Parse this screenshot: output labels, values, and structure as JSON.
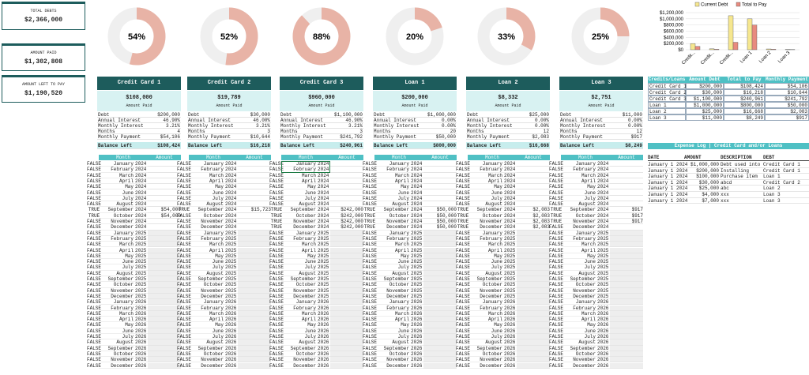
{
  "summary": [
    {
      "label": "TOTAL DEBTS",
      "value": "$2,366,000"
    },
    {
      "label": "AMOUNT PAID",
      "value": "$1,302,808"
    },
    {
      "label": "AMOUNT LEFT TO PAY",
      "value": "$1,190,520"
    }
  ],
  "chart_data": [
    {
      "type": "pie",
      "values": [
        54
      ],
      "value_labels": [
        "54%"
      ],
      "color": "#e8b3a6"
    },
    {
      "type": "pie",
      "values": [
        52
      ],
      "value_labels": [
        "52%"
      ],
      "color": "#e8b3a6"
    },
    {
      "type": "pie",
      "values": [
        88
      ],
      "value_labels": [
        "88%"
      ],
      "color": "#e8b3a6"
    },
    {
      "type": "pie",
      "values": [
        20
      ],
      "value_labels": [
        "20%"
      ],
      "color": "#e8b3a6"
    },
    {
      "type": "pie",
      "values": [
        33
      ],
      "value_labels": [
        "33%"
      ],
      "color": "#e8b3a6"
    },
    {
      "type": "pie",
      "values": [
        25
      ],
      "value_labels": [
        "25%"
      ],
      "color": "#e8b3a6"
    },
    {
      "type": "bar",
      "categories": [
        "Credit...",
        "Credit...",
        "Credit...",
        "Loan 1",
        "Loan 2",
        "Loan 3"
      ],
      "series": [
        {
          "name": "Current Debt",
          "color": "#f6e78f",
          "values": [
            200000,
            30000,
            1100000,
            1000000,
            25000,
            11000
          ]
        },
        {
          "name": "Total to Pay",
          "color": "#e88a7f",
          "values": [
            108424,
            16218,
            240961,
            800000,
            16668,
            8249
          ]
        }
      ],
      "ylim": [
        0,
        1200000
      ],
      "yticks": [
        {
          "value": 0,
          "label": "$0"
        },
        {
          "value": 200000,
          "label": "$200,000"
        },
        {
          "value": 400000,
          "label": "$400,000"
        },
        {
          "value": 600000,
          "label": "$600,000"
        },
        {
          "value": 800000,
          "label": "$800,000"
        },
        {
          "value": 1000000,
          "label": "$1,000,000"
        },
        {
          "value": 1200000,
          "label": "$1,200,000"
        }
      ],
      "legend": "top"
    }
  ],
  "card_labels": [
    "Debt",
    "Annual Interest",
    "Monthly Interest",
    "Months",
    "Monthly Payment",
    "Balance Left"
  ],
  "amount_paid_label": "Amount Paid",
  "cards": [
    {
      "title": "Credit Card 1",
      "amount_paid": "$108,000",
      "values": [
        "$200,000",
        "46.90%",
        "3.21%",
        "4",
        "$54,106",
        "$108,424"
      ]
    },
    {
      "title": "Credit Card 2",
      "amount_paid": "$19,789",
      "values": [
        "$30,000",
        "46.00%",
        "3.21%",
        "3",
        "$10,644",
        "$16,218"
      ]
    },
    {
      "title": "Credit Card 3",
      "amount_paid": "$960,000",
      "values": [
        "$1,100,000",
        "46.90%",
        "3.21%",
        "3",
        "$241,792",
        "$240,961"
      ]
    },
    {
      "title": "Loan 1",
      "amount_paid": "$200,000",
      "values": [
        "$1,000,000",
        "0.00%",
        "0.00%",
        "20",
        "$50,000",
        "$800,000"
      ]
    },
    {
      "title": "Loan 2",
      "amount_paid": "$8,332",
      "values": [
        "$25,000",
        "0.00%",
        "0.00%",
        "12",
        "$2,083",
        "$16,668"
      ]
    },
    {
      "title": "Loan 3",
      "amount_paid": "$2,751",
      "values": [
        "$11,000",
        "0.00%",
        "0.00%",
        "12",
        "$917",
        "$8,249"
      ]
    }
  ],
  "month_table": {
    "headers": [
      "Month",
      "Amount"
    ],
    "months": [
      "January",
      "February",
      "March",
      "April",
      "May",
      "June",
      "July",
      "August",
      "September",
      "October",
      "November",
      "December"
    ],
    "years": [
      "2024",
      "2025",
      "2026"
    ]
  },
  "payments": [
    {
      "status": [
        "FALSE",
        "FALSE",
        "FALSE",
        "FALSE",
        "FALSE",
        "FALSE",
        "FALSE",
        "FALSE",
        "TRUE",
        "TRUE",
        "FALSE",
        "FALSE",
        "FALSE",
        "FALSE",
        "FALSE",
        "FALSE",
        "FALSE",
        "FALSE",
        "FALSE",
        "FALSE",
        "FALSE",
        "FALSE",
        "FALSE",
        "FALSE",
        "FALSE",
        "FALSE",
        "FALSE",
        "FALSE",
        "FALSE",
        "FALSE",
        "FALSE",
        "FALSE",
        "FALSE",
        "FALSE",
        "FALSE",
        "FALSE"
      ],
      "amounts": [
        null,
        null,
        null,
        null,
        null,
        null,
        null,
        null,
        "$54,000",
        "$54,000",
        null,
        null,
        null,
        null,
        null,
        null,
        null,
        null,
        null,
        null,
        null,
        null,
        null,
        null,
        null,
        null,
        null,
        null,
        null,
        null,
        null,
        null,
        null,
        null,
        null,
        null
      ]
    },
    {
      "status": [
        "FALSE",
        "FALSE",
        "FALSE",
        "FALSE",
        "FALSE",
        "FALSE",
        "FALSE",
        "FALSE",
        "TRUE",
        "FALSE",
        "FALSE",
        "FALSE",
        "FALSE",
        "FALSE",
        "FALSE",
        "FALSE",
        "FALSE",
        "FALSE",
        "FALSE",
        "FALSE",
        "FALSE",
        "FALSE",
        "FALSE",
        "FALSE",
        "FALSE",
        "FALSE",
        "FALSE",
        "FALSE",
        "FALSE",
        "FALSE",
        "FALSE",
        "FALSE",
        "FALSE",
        "FALSE",
        "FALSE",
        "FALSE"
      ],
      "amounts": [
        null,
        null,
        null,
        null,
        null,
        null,
        null,
        null,
        "$15,723",
        null,
        null,
        null,
        null,
        null,
        null,
        null,
        null,
        null,
        null,
        null,
        null,
        null,
        null,
        null,
        null,
        null,
        null,
        null,
        null,
        null,
        null,
        null,
        null,
        null,
        null,
        null
      ]
    },
    {
      "status": [
        "FALSE",
        "FALSE",
        "FALSE",
        "FALSE",
        "FALSE",
        "FALSE",
        "FALSE",
        "FALSE",
        "TRUE",
        "TRUE",
        "TRUE",
        "TRUE",
        "FALSE",
        "FALSE",
        "FALSE",
        "FALSE",
        "FALSE",
        "FALSE",
        "FALSE",
        "FALSE",
        "FALSE",
        "FALSE",
        "FALSE",
        "FALSE",
        "FALSE",
        "FALSE",
        "FALSE",
        "FALSE",
        "FALSE",
        "FALSE",
        "FALSE",
        "FALSE",
        "FALSE",
        "FALSE",
        "FALSE",
        "FALSE"
      ],
      "amounts": [
        null,
        null,
        null,
        null,
        null,
        null,
        null,
        null,
        "$242,000",
        "$242,000",
        "$242,000",
        "$242,000",
        null,
        null,
        null,
        null,
        null,
        null,
        null,
        null,
        null,
        null,
        null,
        null,
        null,
        null,
        null,
        null,
        null,
        null,
        null,
        null,
        null,
        null,
        null,
        null
      ]
    },
    {
      "status": [
        "FALSE",
        "FALSE",
        "FALSE",
        "FALSE",
        "FALSE",
        "FALSE",
        "FALSE",
        "FALSE",
        "TRUE",
        "TRUE",
        "TRUE",
        "TRUE",
        "FALSE",
        "FALSE",
        "FALSE",
        "FALSE",
        "FALSE",
        "FALSE",
        "FALSE",
        "FALSE",
        "FALSE",
        "FALSE",
        "FALSE",
        "FALSE",
        "FALSE",
        "FALSE",
        "FALSE",
        "FALSE",
        "FALSE",
        "FALSE",
        "FALSE",
        "FALSE",
        "FALSE",
        "FALSE",
        "FALSE",
        "FALSE"
      ],
      "amounts": [
        null,
        null,
        null,
        null,
        null,
        null,
        null,
        null,
        "$50,000",
        "$50,000",
        "$50,000",
        "$50,000",
        null,
        null,
        null,
        null,
        null,
        null,
        null,
        null,
        null,
        null,
        null,
        null,
        null,
        null,
        null,
        null,
        null,
        null,
        null,
        null,
        null,
        null,
        null,
        null
      ]
    },
    {
      "status": [
        "FALSE",
        "FALSE",
        "FALSE",
        "FALSE",
        "FALSE",
        "FALSE",
        "FALSE",
        "FALSE",
        "TRUE",
        "TRUE",
        "TRUE",
        "TRUE",
        "FALSE",
        "FALSE",
        "FALSE",
        "FALSE",
        "FALSE",
        "FALSE",
        "FALSE",
        "FALSE",
        "FALSE",
        "FALSE",
        "FALSE",
        "FALSE",
        "FALSE",
        "FALSE",
        "FALSE",
        "FALSE",
        "FALSE",
        "FALSE",
        "FALSE",
        "FALSE",
        "FALSE",
        "FALSE",
        "FALSE",
        "FALSE"
      ],
      "amounts": [
        null,
        null,
        null,
        null,
        null,
        null,
        null,
        null,
        "$2,083",
        "$2,083",
        "$2,083",
        "$2,083",
        null,
        null,
        null,
        null,
        null,
        null,
        null,
        null,
        null,
        null,
        null,
        null,
        null,
        null,
        null,
        null,
        null,
        null,
        null,
        null,
        null,
        null,
        null,
        null
      ]
    },
    {
      "status": [
        "FALSE",
        "FALSE",
        "FALSE",
        "FALSE",
        "FALSE",
        "FALSE",
        "FALSE",
        "FALSE",
        "TRUE",
        "TRUE",
        "TRUE",
        "FALSE",
        "FALSE",
        "FALSE",
        "FALSE",
        "FALSE",
        "FALSE",
        "FALSE",
        "FALSE",
        "FALSE",
        "FALSE",
        "FALSE",
        "FALSE",
        "FALSE",
        "FALSE",
        "FALSE",
        "FALSE",
        "FALSE",
        "FALSE",
        "FALSE",
        "FALSE",
        "FALSE",
        "FALSE",
        "FALSE",
        "FALSE",
        "FALSE"
      ],
      "amounts": [
        null,
        null,
        null,
        null,
        null,
        null,
        null,
        null,
        "$917",
        "$917",
        "$917",
        null,
        null,
        null,
        null,
        null,
        null,
        null,
        null,
        null,
        null,
        null,
        null,
        null,
        null,
        null,
        null,
        null,
        null,
        null,
        null,
        null,
        null,
        null,
        null,
        null
      ]
    }
  ],
  "summary_table": {
    "headers": [
      "Credits/Loans",
      "Amount Debt",
      "Total to Pay",
      "Monthly Payment"
    ],
    "rows": [
      [
        "Credit Card 1",
        "$200,000",
        "$108,424",
        "$54,106"
      ],
      [
        "Credit Card 2",
        "$30,000",
        "$16,218",
        "$10,644"
      ],
      [
        "Credit Card 3",
        "$1,100,000",
        "$240,961",
        "$241,792"
      ],
      [
        "Loan 1",
        "$1,000,000",
        "$800,000",
        "$50,000"
      ],
      [
        "Loan 2",
        "$25,000",
        "$16,668",
        "$2,083"
      ],
      [
        "Loan 3",
        "$11,000",
        "$8,249",
        "$917"
      ]
    ]
  },
  "expense_log": {
    "title": "Expense Log | Credit Card and/or Loans",
    "headers": [
      "DATE",
      "AMOUNT",
      "DESCRIPTION",
      "DEBT"
    ],
    "rows": [
      [
        "January 1 2024",
        "$1,000,000",
        "Debt used into",
        "Credit Card 1"
      ],
      [
        "January 1 2024",
        "$200,000",
        "Installing",
        "Credit Card 1"
      ],
      [
        "January 1 2024",
        "$100,000",
        "Purchase item",
        "Loan 1"
      ],
      [
        "January 1 2024",
        "$30,000",
        "abcd",
        "Credit Card 2"
      ],
      [
        "January 1 2024",
        "$25,000",
        "abc",
        "Loan 2"
      ],
      [
        "January 1 2024",
        "$4,000",
        "xxx",
        "Loan 3"
      ],
      [
        "January 1 2024",
        "$7,000",
        "xxx",
        "Loan 3"
      ]
    ]
  }
}
